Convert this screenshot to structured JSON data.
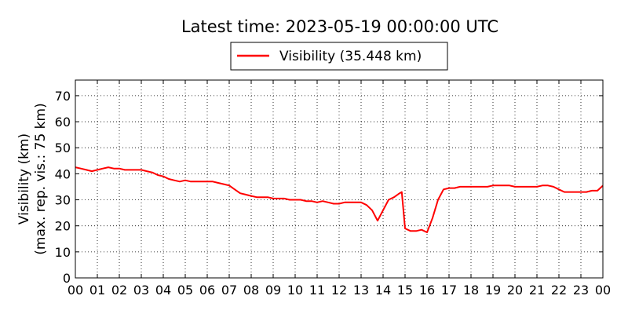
{
  "chart_data": {
    "type": "line",
    "title": "Latest time: 2023-05-19 00:00:00 UTC",
    "ylabel_line1": "Visibility (km)",
    "ylabel_line2": "(max. rep. vis.: 75 km)",
    "xlabel": "",
    "x_tick_labels": [
      "00",
      "01",
      "02",
      "03",
      "04",
      "05",
      "06",
      "07",
      "08",
      "09",
      "10",
      "11",
      "12",
      "13",
      "14",
      "15",
      "16",
      "17",
      "18",
      "19",
      "20",
      "21",
      "22",
      "23",
      "00"
    ],
    "y_ticks": [
      0,
      10,
      20,
      30,
      40,
      50,
      60,
      70
    ],
    "xlim": [
      0,
      24
    ],
    "ylim": [
      0,
      76
    ],
    "grid": true,
    "legend_position": "top-center",
    "series": [
      {
        "name": "Visibility (35.448 km)",
        "color": "#ff0000",
        "x": [
          0,
          0.25,
          0.5,
          0.75,
          1,
          1.25,
          1.5,
          1.75,
          2,
          2.25,
          2.5,
          2.75,
          3,
          3.25,
          3.5,
          3.75,
          4,
          4.25,
          4.5,
          4.75,
          5,
          5.25,
          5.5,
          5.75,
          6,
          6.25,
          6.5,
          6.75,
          7,
          7.25,
          7.5,
          7.75,
          8,
          8.25,
          8.5,
          8.75,
          9,
          9.25,
          9.5,
          9.75,
          10,
          10.25,
          10.5,
          10.75,
          11,
          11.25,
          11.5,
          11.75,
          12,
          12.25,
          12.5,
          12.75,
          13,
          13.25,
          13.5,
          13.75,
          14,
          14.25,
          14.5,
          14.75,
          14.85,
          15,
          15.25,
          15.5,
          15.75,
          16,
          16.25,
          16.5,
          16.75,
          17,
          17.25,
          17.5,
          17.75,
          18,
          18.25,
          18.5,
          18.75,
          19,
          19.25,
          19.5,
          19.75,
          20,
          20.25,
          20.5,
          20.75,
          21,
          21.25,
          21.5,
          21.75,
          22,
          22.25,
          22.5,
          22.75,
          23,
          23.25,
          23.5,
          23.75,
          24
        ],
        "y": [
          42.5,
          42,
          41.5,
          41,
          41.5,
          42,
          42.5,
          42,
          42,
          41.5,
          41.5,
          41.5,
          41.5,
          41,
          40.5,
          39.5,
          39,
          38,
          37.5,
          37,
          37.5,
          37,
          37,
          37,
          37,
          37,
          36.5,
          36,
          35.5,
          34,
          32.5,
          32,
          31.5,
          31,
          31,
          31,
          30.5,
          30.5,
          30.5,
          30,
          30,
          30,
          29.5,
          29.5,
          29,
          29.5,
          29,
          28.5,
          28.5,
          29,
          29,
          29,
          29,
          28,
          26,
          22,
          26,
          30,
          31,
          32.5,
          33,
          19,
          18,
          18,
          18.5,
          17.5,
          23,
          30,
          34,
          34.5,
          34.5,
          35,
          35,
          35,
          35,
          35,
          35,
          35.5,
          35.5,
          35.5,
          35.5,
          35,
          35,
          35,
          35,
          35,
          35.5,
          35.5,
          35,
          34,
          33,
          33,
          33,
          33,
          33,
          33.5,
          33.5,
          35.448
        ]
      }
    ]
  }
}
